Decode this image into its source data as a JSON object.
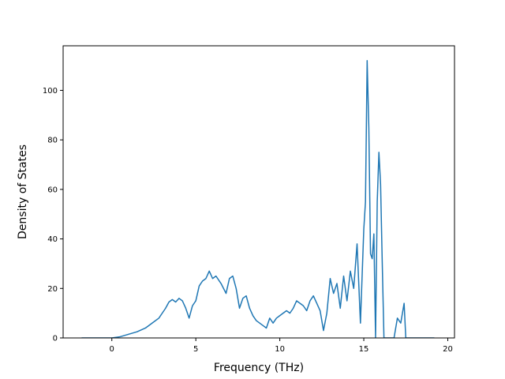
{
  "chart_data": {
    "type": "line",
    "title": "",
    "xlabel": "Frequency (THz)",
    "ylabel": "Density of States",
    "xlim": [
      -2.9,
      20.4
    ],
    "ylim": [
      0,
      118
    ],
    "xticks": [
      0,
      5,
      10,
      15,
      20
    ],
    "yticks": [
      0,
      20,
      40,
      60,
      80,
      100
    ],
    "grid": false,
    "legend": "none",
    "colors": {
      "line": "#1f77b4",
      "axes": "#000000",
      "background": "#ffffff"
    },
    "series": [
      {
        "x": [
          -1.8,
          -1.0,
          0.0,
          0.5,
          1.0,
          1.5,
          2.0,
          2.5,
          2.8,
          3.0,
          3.2,
          3.4,
          3.6,
          3.8,
          4.0,
          4.2,
          4.4,
          4.6,
          4.8,
          5.0,
          5.2,
          5.4,
          5.6,
          5.8,
          6.0,
          6.2,
          6.5,
          6.8,
          7.0,
          7.2,
          7.4,
          7.6,
          7.8,
          8.0,
          8.2,
          8.4,
          8.6,
          8.8,
          9.0,
          9.2,
          9.4,
          9.6,
          9.8,
          10.0,
          10.2,
          10.4,
          10.6,
          10.8,
          11.0,
          11.2,
          11.4,
          11.6,
          11.8,
          12.0,
          12.2,
          12.4,
          12.6,
          12.8,
          13.0,
          13.2,
          13.4,
          13.6,
          13.8,
          14.0,
          14.2,
          14.4,
          14.6,
          14.8,
          15.0,
          15.1,
          15.2,
          15.3,
          15.4,
          15.5,
          15.6,
          15.7,
          15.8,
          15.9,
          16.0,
          16.1,
          16.2,
          16.3,
          16.4,
          16.6,
          16.8,
          17.0,
          17.2,
          17.4,
          17.5,
          17.6,
          17.8,
          18.2,
          19.2
        ],
        "y": [
          0,
          0,
          0,
          0.5,
          1.5,
          2.5,
          4,
          6.5,
          8,
          10,
          12,
          14.5,
          15.5,
          14.5,
          16,
          15,
          12,
          8,
          13,
          15,
          21,
          23,
          24,
          27,
          24,
          25,
          22,
          18,
          24,
          25,
          20,
          12,
          16,
          17,
          12,
          9,
          7,
          6,
          5,
          4,
          8,
          6,
          8,
          9,
          10,
          11,
          10,
          12,
          15,
          14,
          13,
          11,
          15,
          17,
          14,
          11,
          3,
          10,
          24,
          18,
          22,
          12,
          25,
          15,
          27,
          20,
          38,
          6,
          44,
          55,
          112,
          85,
          34,
          32,
          42,
          0,
          55,
          75,
          62,
          30,
          0,
          0,
          0,
          0,
          0,
          8,
          6,
          14,
          0,
          0,
          0,
          0,
          0
        ]
      }
    ]
  }
}
